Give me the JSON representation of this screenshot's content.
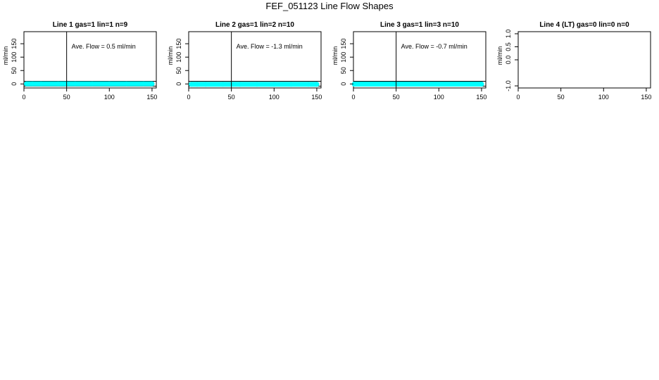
{
  "page": {
    "title": "FEF_051123  Line Flow Shapes"
  },
  "colors": {
    "series": "#00ffff",
    "axis": "#000000"
  },
  "chart_data": [
    {
      "type": "line",
      "title": "Line 1 gas=1 lin=1 n=9",
      "ylabel": "ml/min",
      "xlabel": "",
      "xlim": [
        0,
        155
      ],
      "ylim": [
        -15,
        195
      ],
      "xticks": [
        0,
        50,
        100,
        150
      ],
      "yticks": [
        0,
        50,
        100,
        150
      ],
      "vline_x": 50,
      "hlines_y": [
        -8,
        10
      ],
      "annotation": "Ave. Flow =  0.5  ml/min",
      "series": [
        {
          "color": "#00ffff",
          "x": [
            3,
            10,
            20,
            40,
            60,
            80,
            100,
            120,
            140,
            150
          ],
          "y": [
            0.5,
            0.5,
            0.5,
            0.5,
            0.5,
            0.5,
            0.5,
            0.5,
            0.5,
            0.5
          ]
        }
      ]
    },
    {
      "type": "line",
      "title": "Line 2 gas=1 lin=2 n=10",
      "ylabel": "ml/min",
      "xlabel": "",
      "xlim": [
        0,
        155
      ],
      "ylim": [
        -15,
        195
      ],
      "xticks": [
        0,
        50,
        100,
        150
      ],
      "yticks": [
        0,
        50,
        100,
        150
      ],
      "vline_x": 50,
      "hlines_y": [
        -8,
        10
      ],
      "annotation": "Ave. Flow =  -1.3  ml/min",
      "series": [
        {
          "color": "#00ffff",
          "x": [
            3,
            10,
            20,
            40,
            60,
            80,
            100,
            120,
            140,
            150
          ],
          "y": [
            -1.3,
            -1.3,
            -1.3,
            -1.3,
            -1.3,
            -1.3,
            -1.3,
            -1.3,
            -1.3,
            -1.3
          ]
        }
      ]
    },
    {
      "type": "line",
      "title": "Line 3 gas=1 lin=3 n=10",
      "ylabel": "ml/min",
      "xlabel": "",
      "xlim": [
        0,
        155
      ],
      "ylim": [
        -15,
        195
      ],
      "xticks": [
        0,
        50,
        100,
        150
      ],
      "yticks": [
        0,
        50,
        100,
        150
      ],
      "vline_x": 50,
      "hlines_y": [
        -8,
        10
      ],
      "annotation": "Ave. Flow =  -0.7  ml/min",
      "series": [
        {
          "color": "#00ffff",
          "x": [
            1,
            10,
            20,
            40,
            60,
            80,
            100,
            120,
            140,
            150
          ],
          "y": [
            -0.7,
            -0.7,
            -0.7,
            -0.7,
            -0.7,
            -0.7,
            -0.7,
            -0.7,
            -0.7,
            -0.7
          ]
        }
      ]
    },
    {
      "type": "line",
      "title": "Line 4 (LT) gas=0 lin=0 n=0",
      "ylabel": "ml/min",
      "xlabel": "",
      "xlim": [
        0,
        155
      ],
      "ylim": [
        -1.08,
        1.08
      ],
      "xticks": [
        0,
        50,
        100,
        150
      ],
      "yticks": [
        -1.0,
        0.0,
        0.5,
        1.0
      ],
      "ytick_labels": [
        "-1.0",
        "0.0",
        "0.5",
        "1.0"
      ],
      "vline_x": null,
      "hlines_y": [],
      "annotation": "",
      "series": []
    }
  ]
}
